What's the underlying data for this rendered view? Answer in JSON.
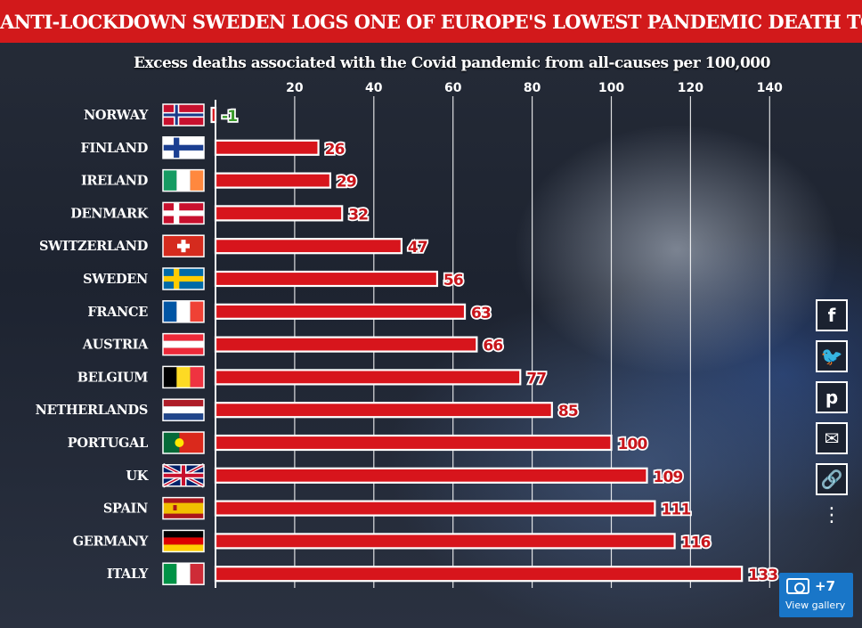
{
  "banner": {
    "title": "ANTI-LOCKDOWN SWEDEN LOGS ONE OF EUROPE'S LOWEST PANDEMIC DEATH TOLLS"
  },
  "colors": {
    "banner": "#d2191b",
    "bar": "#d7151c",
    "bar_stroke": "#ffffff",
    "value_label": "#c8151b",
    "negative_label": "#3a9a2a"
  },
  "chart_data": {
    "type": "bar",
    "orientation": "horizontal",
    "title": "Excess deaths associated with the Covid pandemic from all-causes per 100,000",
    "categories": [
      "NORWAY",
      "FINLAND",
      "IRELAND",
      "DENMARK",
      "SWITZERLAND",
      "SWEDEN",
      "FRANCE",
      "AUSTRIA",
      "BELGIUM",
      "NETHERLANDS",
      "PORTUGAL",
      "UK",
      "SPAIN",
      "GERMANY",
      "ITALY"
    ],
    "values": [
      -1,
      26,
      29,
      32,
      47,
      56,
      63,
      66,
      77,
      85,
      100,
      109,
      111,
      116,
      133
    ],
    "value_labels": [
      "-1",
      "26",
      "29",
      "32",
      "47",
      "56",
      "63",
      "66",
      "77",
      "85",
      "100",
      "109",
      "111",
      "116",
      "133"
    ],
    "xlim": [
      0,
      140
    ],
    "xticks": [
      20,
      40,
      60,
      80,
      100,
      120,
      140
    ],
    "xtick_labels": [
      "20",
      "40",
      "60",
      "80",
      "100",
      "120",
      "140"
    ],
    "axis_position": "top",
    "grid": true,
    "flags": [
      "norway-flag",
      "finland-flag",
      "ireland-flag",
      "denmark-flag",
      "switzerland-flag",
      "sweden-flag",
      "france-flag",
      "austria-flag",
      "belgium-flag",
      "netherlands-flag",
      "portugal-flag",
      "uk-flag",
      "spain-flag",
      "germany-flag",
      "italy-flag"
    ]
  },
  "social": {
    "buttons": [
      "facebook-icon",
      "twitter-icon",
      "pinterest-icon",
      "email-icon",
      "link-icon"
    ],
    "share": "share-icon",
    "glyphs": {
      "facebook": "f",
      "twitter": "🐦",
      "pinterest": "p",
      "email": "✉",
      "link": "🔗",
      "share": "⋮"
    }
  },
  "gallery": {
    "count": "+7",
    "label": "View gallery"
  }
}
